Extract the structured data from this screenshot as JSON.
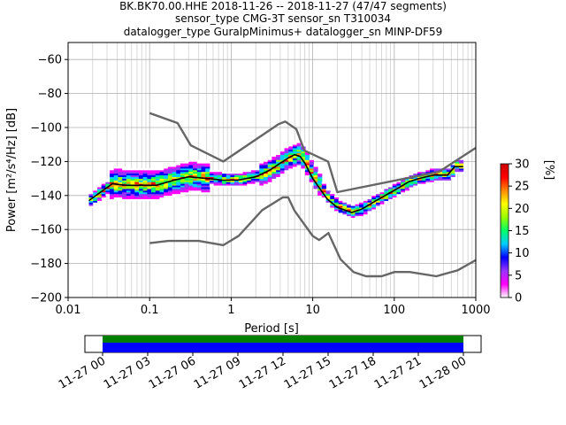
{
  "chart_data": [
    {
      "type": "heatmap",
      "title_lines": [
        "BK.BK70.00.HHE   2018-11-26 -- 2018-11-27  (47/47 segments)",
        "sensor_type CMG-3T sensor_sn T310034",
        "datalogger_type GuralpMinimus+ datalogger_sn MINP-DF59"
      ],
      "xlabel": "Period [s]",
      "ylabel": "Power [m²/s⁴/Hz] [dB]",
      "xscale": "log",
      "xlim": [
        0.01,
        1000
      ],
      "ylim": [
        -200,
        -50
      ],
      "x_ticks": [
        0.01,
        0.1,
        1,
        10,
        100,
        1000
      ],
      "x_tick_labels": [
        "0.01",
        "0.1",
        "1",
        "10",
        "100",
        "1000"
      ],
      "y_ticks": [
        -200,
        -180,
        -160,
        -140,
        -120,
        -100,
        -80,
        -60
      ],
      "y_tick_labels": [
        "−200",
        "−180",
        "−160",
        "−140",
        "−120",
        "−100",
        "−80",
        "−60"
      ],
      "grid": true,
      "colorbar": {
        "label": "[%]",
        "range": [
          0,
          30
        ],
        "ticks": [
          0,
          5,
          10,
          15,
          20,
          25,
          30
        ],
        "tick_labels": [
          "0",
          "5",
          "10",
          "15",
          "20",
          "25",
          "30"
        ],
        "colors": [
          "#ffffff",
          "#ff00ff",
          "#9933ff",
          "#0000ff",
          "#00ccff",
          "#00ff66",
          "#99ff00",
          "#ffff00",
          "#ff8800",
          "#ff0000",
          "#cc0000"
        ]
      },
      "series": [
        {
          "role": "mean",
          "color": "#000000",
          "x": [
            0.018,
            0.025,
            0.035,
            0.05,
            0.08,
            0.12,
            0.2,
            0.3,
            0.5,
            0.8,
            1.2,
            2,
            3,
            4,
            5,
            6,
            7,
            8,
            10,
            15,
            20,
            30,
            40,
            60,
            100,
            150,
            200,
            300,
            450,
            550,
            700
          ],
          "y": [
            -143,
            -138,
            -133,
            -134,
            -134,
            -134,
            -131,
            -129,
            -130,
            -131,
            -131,
            -129,
            -125,
            -121,
            -118,
            -116,
            -117,
            -121,
            -130,
            -142,
            -147,
            -150,
            -148,
            -143,
            -137,
            -132,
            -130,
            -128,
            -128,
            -123,
            -123
          ]
        },
        {
          "role": "high-noise-model",
          "color": "#666666",
          "x": [
            0.1,
            0.22,
            0.32,
            0.8,
            3.8,
            4.6,
            6.3,
            7.9,
            15.4,
            20,
            354.8,
            1000
          ],
          "y": [
            -91.5,
            -97.4,
            -110.5,
            -120,
            -98,
            -96.5,
            -101,
            -113.5,
            -120,
            -138,
            -126,
            -112
          ]
        },
        {
          "role": "low-noise-model",
          "color": "#666666",
          "x": [
            0.1,
            0.17,
            0.4,
            0.8,
            1.24,
            2.4,
            4.3,
            5,
            6,
            10,
            12,
            15.6,
            21.9,
            31.6,
            45,
            70,
            101,
            154,
            328,
            600,
            1000
          ],
          "y": [
            -168,
            -166.7,
            -166.7,
            -169.2,
            -163.7,
            -148.6,
            -141.1,
            -141.1,
            -149,
            -163.8,
            -166.2,
            -162.1,
            -177.5,
            -185,
            -187.5,
            -187.5,
            -185,
            -185,
            -187.5,
            -184,
            -178
          ]
        }
      ]
    },
    {
      "type": "timeline",
      "x_tick_labels": [
        "11-27 00",
        "11-27 03",
        "11-27 06",
        "11-27 09",
        "11-27 12",
        "11-27 15",
        "11-27 18",
        "11-27 21",
        "11-28 00"
      ],
      "bars": [
        {
          "role": "upper",
          "color": "#008000"
        },
        {
          "role": "lower",
          "color": "#0000ff"
        }
      ]
    }
  ]
}
